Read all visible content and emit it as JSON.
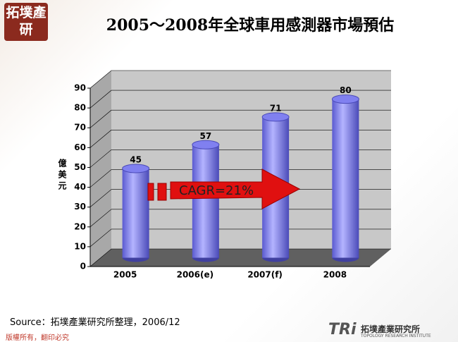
{
  "chart_data": {
    "type": "bar",
    "title": "2005～2008年全球車用感測器市場預估",
    "y_label": "億美元",
    "annotation": "CAGR=21%",
    "categories": [
      "2005",
      "2006(e)",
      "2007(f)",
      "2008"
    ],
    "values": [
      45,
      57,
      71,
      80
    ],
    "color": "#8080f0",
    "ylim": [
      0,
      90
    ],
    "yticks": [
      0,
      10,
      20,
      30,
      40,
      50,
      60,
      70,
      80,
      90
    ],
    "grid": true
  },
  "source": "Source：拓墣產業研究所整理，2006/12",
  "footer": "版權所有，翻印必究",
  "logo": "拓墣產研",
  "brand_mark": "TRi",
  "brand_name": "拓墣產業研究所",
  "brand_english": "TOPOLOGY RESEARCH INSTITUTE"
}
